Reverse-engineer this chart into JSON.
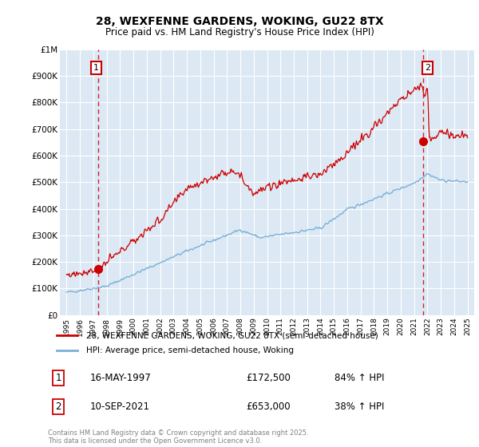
{
  "title": "28, WEXFENNE GARDENS, WOKING, GU22 8TX",
  "subtitle": "Price paid vs. HM Land Registry's House Price Index (HPI)",
  "plot_bg_color": "#dce9f5",
  "red_line_color": "#cc0000",
  "blue_line_color": "#7ab0d4",
  "dashed_line_color": "#cc0000",
  "marker1_date_x": 1997.37,
  "marker2_date_x": 2021.69,
  "marker1_price": 172500,
  "marker2_price": 653000,
  "ylim_min": 0,
  "ylim_max": 1000000,
  "xlim_min": 1994.5,
  "xlim_max": 2025.5,
  "yticks": [
    0,
    100000,
    200000,
    300000,
    400000,
    500000,
    600000,
    700000,
    800000,
    900000,
    1000000
  ],
  "ytick_labels": [
    "£0",
    "£100K",
    "£200K",
    "£300K",
    "£400K",
    "£500K",
    "£600K",
    "£700K",
    "£800K",
    "£900K",
    "£1M"
  ],
  "xticks": [
    1995,
    1996,
    1997,
    1998,
    1999,
    2000,
    2001,
    2002,
    2003,
    2004,
    2005,
    2006,
    2007,
    2008,
    2009,
    2010,
    2011,
    2012,
    2013,
    2014,
    2015,
    2016,
    2017,
    2018,
    2019,
    2020,
    2021,
    2022,
    2023,
    2024,
    2025
  ],
  "legend_label_red": "28, WEXFENNE GARDENS, WOKING, GU22 8TX (semi-detached house)",
  "legend_label_blue": "HPI: Average price, semi-detached house, Woking",
  "annotation1_date": "16-MAY-1997",
  "annotation1_price": "£172,500",
  "annotation1_hpi": "84% ↑ HPI",
  "annotation2_date": "10-SEP-2021",
  "annotation2_price": "£653,000",
  "annotation2_hpi": "38% ↑ HPI",
  "footer": "Contains HM Land Registry data © Crown copyright and database right 2025.\nThis data is licensed under the Open Government Licence v3.0."
}
